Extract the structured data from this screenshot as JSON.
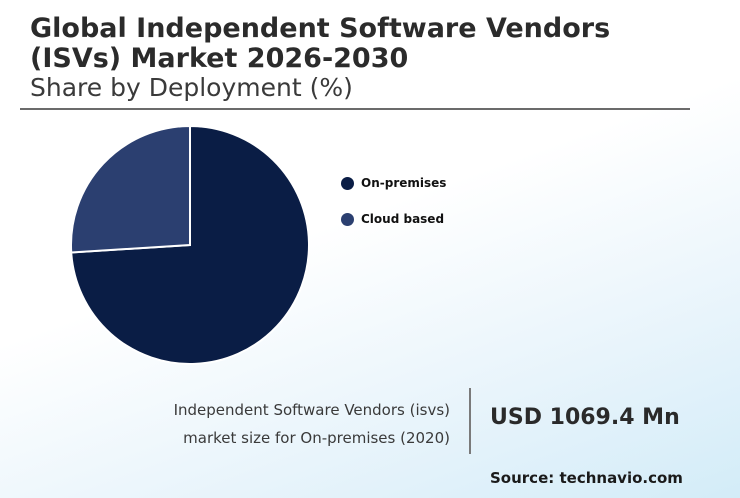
{
  "header": {
    "title": "Global Independent Software Vendors (ISVs) Market 2026-2030",
    "subtitle": "Share by Deployment (%)"
  },
  "colors": {
    "on_premises": "#0a1d45",
    "cloud_based": "#2b3f70"
  },
  "chart_data": {
    "type": "pie",
    "title": "Share by Deployment (%)",
    "categories": [
      "On-premises",
      "Cloud based"
    ],
    "values": [
      74,
      26
    ],
    "legend_position": "right"
  },
  "legend": {
    "items": [
      {
        "label": "On-premises",
        "color": "#0a1d45"
      },
      {
        "label": "Cloud based",
        "color": "#2b3f70"
      }
    ]
  },
  "stat": {
    "description_line1": "Independent Software Vendors (isvs)",
    "description_line2": "market size for On-premises (2020)",
    "value": "USD 1069.4 Mn"
  },
  "source": "Source: technavio.com"
}
